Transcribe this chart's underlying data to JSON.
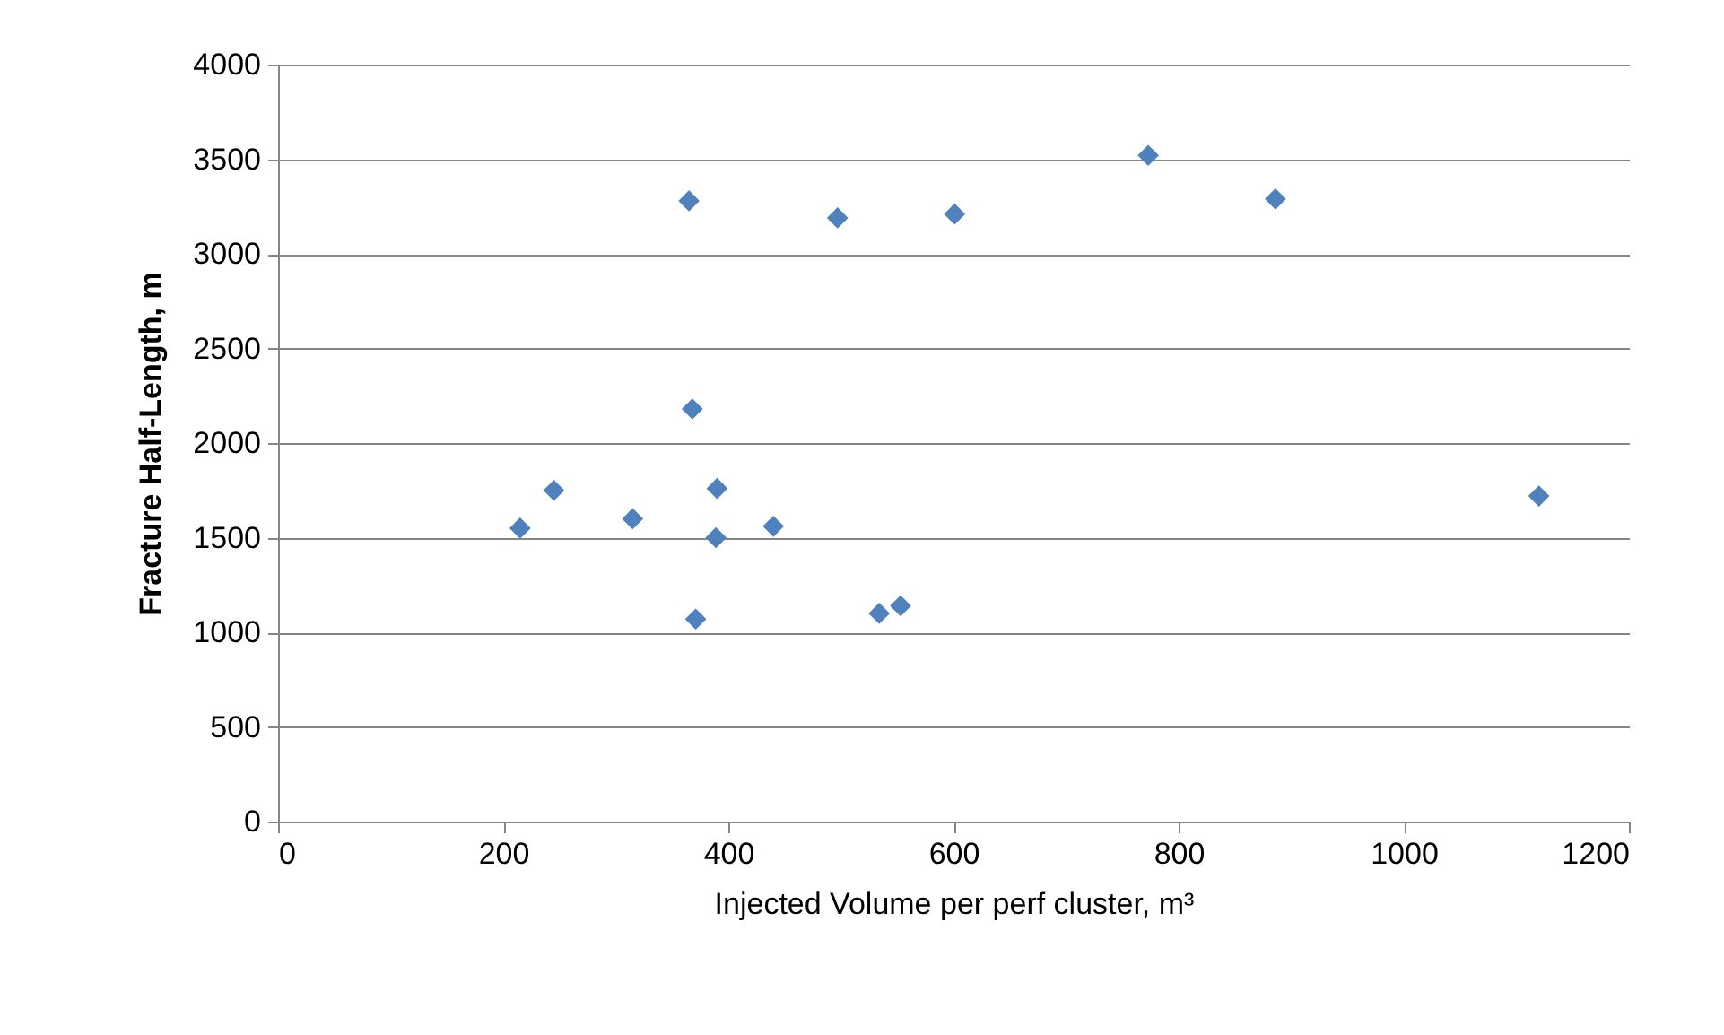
{
  "chart_data": {
    "type": "scatter",
    "xlabel": "Injected Volume per perf cluster, m³",
    "ylabel": "Fracture Half-Length, m",
    "x": [
      215,
      245,
      315,
      365,
      368,
      371,
      390,
      389,
      440,
      497,
      534,
      553,
      601,
      773,
      886,
      1120
    ],
    "series": [
      {
        "color": "#4f81bd",
        "values": [
          1550,
          1750,
          1600,
          3280,
          2180,
          1070,
          1760,
          1500,
          1560,
          3190,
          1100,
          1140,
          3210,
          3520,
          3290,
          1720
        ]
      }
    ],
    "xlim": [
      0,
      1200
    ],
    "xticks": [
      0,
      200,
      400,
      600,
      800,
      1000,
      1200
    ],
    "ylim": [
      0,
      4000
    ],
    "yticks": [
      0,
      500,
      1000,
      1500,
      2000,
      2500,
      3000,
      3500,
      4000
    ],
    "grid": "y",
    "marker": "diamond"
  }
}
